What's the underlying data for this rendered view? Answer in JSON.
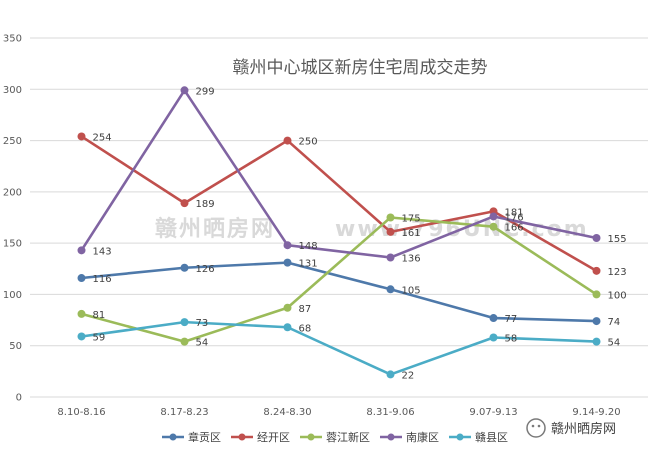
{
  "chart_data": {
    "type": "line",
    "title": "赣州中心城区新房住宅周成交走势",
    "xlabel": "",
    "ylabel": "",
    "ylim": [
      0,
      350
    ],
    "yticks": [
      0,
      50,
      100,
      150,
      200,
      250,
      300,
      350
    ],
    "categories": [
      "8.10-8.16",
      "8.17-8.23",
      "8.24-8.30",
      "8.31-9.06",
      "9.07-9.13",
      "9.14-9.20"
    ],
    "legend_position": "bottom",
    "grid": true,
    "series": [
      {
        "name": "章贡区",
        "color": "#4e79aa",
        "values": [
          116,
          126,
          131,
          105,
          77,
          74
        ]
      },
      {
        "name": "经开区",
        "color": "#c0504d",
        "values": [
          254,
          189,
          250,
          161,
          181,
          123
        ]
      },
      {
        "name": "蓉江新区",
        "color": "#9bbb59",
        "values": [
          81,
          54,
          87,
          175,
          166,
          100
        ]
      },
      {
        "name": "南康区",
        "color": "#8064a2",
        "values": [
          143,
          299,
          148,
          136,
          176,
          155
        ]
      },
      {
        "name": "赣县区",
        "color": "#4bacc6",
        "values": [
          59,
          73,
          68,
          22,
          58,
          54
        ]
      }
    ]
  },
  "watermark": {
    "left_text": "赣州晒房网",
    "right_text": "www.796UNC.com"
  },
  "logo": {
    "text": "赣州晒房网"
  }
}
